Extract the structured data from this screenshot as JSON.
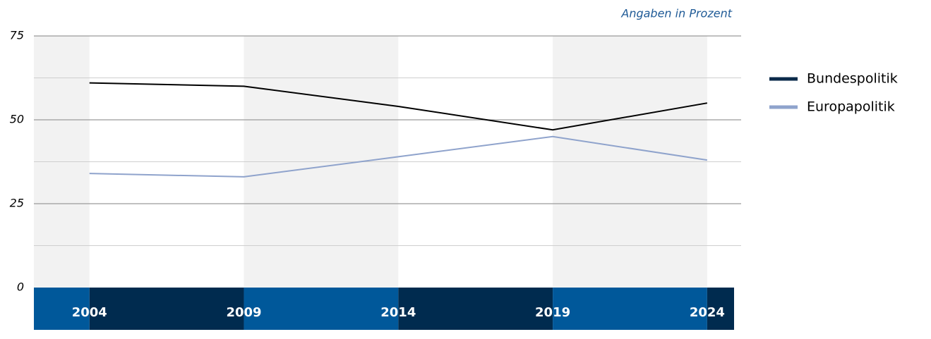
{
  "chart_data": {
    "type": "line",
    "subtitle": "Angaben in Prozent",
    "x": [
      2004,
      2009,
      2014,
      2019,
      2024
    ],
    "xlim": [
      2002.2,
      2025.1
    ],
    "series": [
      {
        "name": "Bundespolitik",
        "color": "#000000",
        "legend_color": "#0a2a4a",
        "values": [
          61,
          60,
          54,
          47,
          55
        ]
      },
      {
        "name": "Europapolitik",
        "color": "#8fa3cc",
        "values": [
          34,
          33,
          39,
          45,
          38
        ]
      }
    ],
    "ylim": [
      0,
      75
    ],
    "yticks": [
      0,
      25,
      50,
      75
    ],
    "minor_yticks": [
      12.5,
      37.5,
      62.5
    ],
    "grid": true,
    "legend": "right"
  }
}
